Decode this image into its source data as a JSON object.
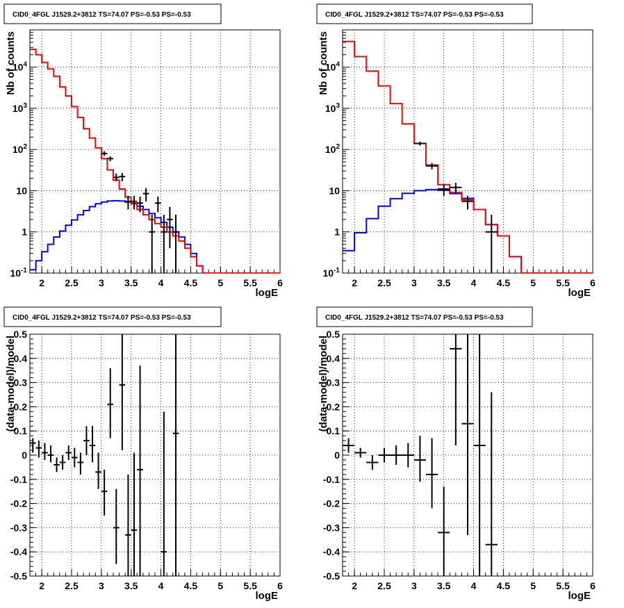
{
  "colors": {
    "data": "#000000",
    "total_model": "#ff0000",
    "source_model": "#0000ff"
  },
  "chart_data": [
    {
      "type": "line",
      "title": "CID0_4FGL J1529.2+3812 TS=74.07 PS=-0.53 PS=-0.53",
      "xlabel": "logE",
      "ylabel": "Nb of counts",
      "xlim": [
        1.8,
        6
      ],
      "ylim": [
        0.1,
        80000
      ],
      "y_scale": "log",
      "grid": true,
      "x_ticks": [
        "2",
        "2.5",
        "3",
        "3.5",
        "4",
        "4.5",
        "5",
        "5.5",
        "6"
      ],
      "y_ticks": [
        "10^-1",
        "1",
        "10",
        "10^2",
        "10^3",
        "10^4"
      ],
      "bin_edges": [
        1.8,
        1.9,
        2.0,
        2.1,
        2.2,
        2.3,
        2.4,
        2.5,
        2.6,
        2.7,
        2.8,
        2.9,
        3.0,
        3.1,
        3.2,
        3.3,
        3.4,
        3.5,
        3.6,
        3.7,
        3.8,
        3.9,
        4.0,
        4.1,
        4.2,
        4.3,
        4.4,
        4.5,
        4.6,
        4.7,
        4.8,
        4.9,
        5.0,
        5.1,
        5.2,
        5.3,
        5.4,
        5.5,
        5.6,
        5.7,
        5.8,
        5.9,
        6.0
      ],
      "series": [
        {
          "values": [
            27000,
            20000,
            13000,
            9000,
            6000,
            3300,
            2000,
            1100,
            600,
            320,
            190,
            110,
            60,
            32,
            18,
            11,
            7,
            5,
            3.5,
            2.6,
            2.0,
            1.6,
            1.3,
            1.0,
            0.8,
            0.6,
            0.4,
            0.25,
            0.15,
            0.1,
            0.1,
            0.1,
            0.1,
            0.1,
            0.1,
            0.1,
            0.1,
            0.1,
            0.1,
            0.1,
            0.1,
            0.1
          ]
        },
        {
          "values": [
            0.12,
            0.2,
            0.33,
            0.5,
            0.75,
            1.05,
            1.45,
            1.95,
            2.6,
            3.3,
            4.1,
            4.8,
            5.3,
            5.6,
            5.7,
            5.6,
            5.3,
            4.8,
            4.2,
            3.5,
            2.8,
            2.2,
            1.7,
            1.3,
            1.0,
            0.75,
            0.5,
            0.3,
            0.15,
            0.1,
            0.1,
            0.1,
            0.1,
            0.1,
            0.1,
            0.1,
            0.1,
            0.1,
            0.1,
            0.1,
            0.1,
            0.1
          ]
        },
        {
          "points": [
            {
              "x": 3.05,
              "y": 80,
              "yerr_low": 70,
              "yerr_high": 91
            },
            {
              "x": 3.15,
              "y": 60,
              "yerr_low": 52,
              "yerr_high": 68
            },
            {
              "x": 3.25,
              "y": 21,
              "yerr_low": 17,
              "yerr_high": 26
            },
            {
              "x": 3.35,
              "y": 22,
              "yerr_low": 17,
              "yerr_high": 27
            },
            {
              "x": 3.45,
              "y": 5.5,
              "yerr_low": 3.5,
              "yerr_high": 7.5
            },
            {
              "x": 3.55,
              "y": 5.5,
              "yerr_low": 3.5,
              "yerr_high": 7.5
            },
            {
              "x": 3.65,
              "y": 5,
              "yerr_low": 3,
              "yerr_high": 7.2
            },
            {
              "x": 3.75,
              "y": 8.5,
              "yerr_low": 5.5,
              "yerr_high": 11.5
            },
            {
              "x": 3.85,
              "y": 1,
              "yerr_low": 0.1,
              "yerr_high": 2.6
            },
            {
              "x": 3.95,
              "y": 5,
              "yerr_low": 3,
              "yerr_high": 7.2
            },
            {
              "x": 4.05,
              "y": 1,
              "yerr_low": 0.1,
              "yerr_high": 2.6
            },
            {
              "x": 4.15,
              "y": 2,
              "yerr_low": 0.4,
              "yerr_high": 4
            },
            {
              "x": 4.25,
              "y": 1,
              "yerr_low": 0.1,
              "yerr_high": 2.6
            }
          ]
        }
      ]
    },
    {
      "type": "line",
      "title": "CID0_4FGL J1529.2+3812 TS=74.07 PS=-0.53 PS=-0.53",
      "xlabel": "logE",
      "ylabel": "Nb of counts",
      "xlim": [
        1.8,
        6
      ],
      "ylim": [
        0.1,
        80000
      ],
      "y_scale": "log",
      "grid": true,
      "x_ticks": [
        "2",
        "2.5",
        "3",
        "3.5",
        "4",
        "4.5",
        "5",
        "5.5",
        "6"
      ],
      "y_ticks": [
        "10^-1",
        "1",
        "10",
        "10^2",
        "10^3",
        "10^4"
      ],
      "bin_edges": [
        1.8,
        2.0,
        2.2,
        2.4,
        2.6,
        2.8,
        3.0,
        3.2,
        3.4,
        3.6,
        3.8,
        4.0,
        4.2,
        4.4,
        4.6,
        4.8,
        5.0,
        5.2,
        5.4,
        5.6,
        5.8,
        6.0
      ],
      "series": [
        {
          "values": [
            42000,
            18000,
            8000,
            3500,
            1300,
            420,
            140,
            42,
            14,
            9,
            6,
            3.5,
            1.5,
            0.8,
            0.25,
            0.1,
            0.1,
            0.1,
            0.1,
            0.1,
            0.1
          ]
        },
        {
          "values": [
            0.35,
            0.95,
            2.1,
            4.2,
            6.4,
            8.6,
            10,
            10.6,
            10.2,
            8.5,
            6.5,
            3.5,
            1.5,
            0.8,
            0.25,
            0.1,
            0.1,
            0.1,
            0.1,
            0.1,
            0.1
          ]
        },
        {
          "points": [
            {
              "x": 3.1,
              "y": 140,
              "yerr_low": 125,
              "yerr_high": 155
            },
            {
              "x": 3.3,
              "y": 40,
              "yerr_low": 33,
              "yerr_high": 47
            },
            {
              "x": 3.5,
              "y": 11,
              "yerr_low": 7.5,
              "yerr_high": 14.5
            },
            {
              "x": 3.7,
              "y": 12,
              "yerr_low": 8.5,
              "yerr_high": 15.5
            },
            {
              "x": 3.9,
              "y": 5.5,
              "yerr_low": 3.5,
              "yerr_high": 7.5
            },
            {
              "x": 4.3,
              "y": 1,
              "yerr_low": 0.1,
              "yerr_high": 2.6
            }
          ]
        }
      ]
    },
    {
      "type": "scatter",
      "title": "CID0_4FGL J1529.2+3812 TS=74.07 PS=-0.53 PS=-0.53",
      "xlabel": "logE",
      "ylabel": "(data-model)/model",
      "xlim": [
        1.8,
        6
      ],
      "ylim": [
        -0.5,
        0.5
      ],
      "grid": true,
      "x_ticks": [
        "2",
        "2.5",
        "3",
        "3.5",
        "4",
        "4.5",
        "5",
        "5.5",
        "6"
      ],
      "y_ticks": [
        "-0.5",
        "-0.4",
        "-0.3",
        "-0.2",
        "-0.1",
        "0",
        "0.1",
        "0.2",
        "0.3",
        "0.4",
        "0.5"
      ],
      "series": [
        {
          "points": [
            {
              "x": 1.85,
              "y": 0.05,
              "lo": 0.01,
              "hi": 0.07
            },
            {
              "x": 1.95,
              "y": 0.03,
              "lo": -0.01,
              "hi": 0.06
            },
            {
              "x": 2.05,
              "y": 0.01,
              "lo": -0.02,
              "hi": 0.05
            },
            {
              "x": 2.15,
              "y": 0.0,
              "lo": -0.03,
              "hi": 0.04
            },
            {
              "x": 2.25,
              "y": -0.04,
              "lo": -0.07,
              "hi": -0.01
            },
            {
              "x": 2.35,
              "y": -0.03,
              "lo": -0.06,
              "hi": 0.0
            },
            {
              "x": 2.45,
              "y": 0.01,
              "lo": -0.02,
              "hi": 0.04
            },
            {
              "x": 2.55,
              "y": -0.01,
              "lo": -0.05,
              "hi": 0.03
            },
            {
              "x": 2.65,
              "y": -0.03,
              "lo": -0.08,
              "hi": 0.01
            },
            {
              "x": 2.75,
              "y": 0.06,
              "lo": 0.0,
              "hi": 0.12
            },
            {
              "x": 2.85,
              "y": 0.04,
              "lo": -0.03,
              "hi": 0.12
            },
            {
              "x": 2.95,
              "y": -0.07,
              "lo": -0.14,
              "hi": 0.01
            },
            {
              "x": 3.05,
              "y": -0.15,
              "lo": -0.25,
              "hi": -0.06
            },
            {
              "x": 3.15,
              "y": 0.21,
              "lo": 0.07,
              "hi": 0.36
            },
            {
              "x": 3.25,
              "y": -0.3,
              "lo": -0.45,
              "hi": -0.14
            },
            {
              "x": 3.35,
              "y": 0.29,
              "lo": 0.02,
              "hi": 0.5
            },
            {
              "x": 3.45,
              "y": -0.33,
              "lo": -0.5,
              "hi": -0.08
            },
            {
              "x": 3.55,
              "y": -0.31,
              "lo": -0.5,
              "hi": 0.01
            },
            {
              "x": 3.65,
              "y": -0.06,
              "lo": -0.5,
              "hi": 0.37
            },
            {
              "x": 4.05,
              "y": -0.4,
              "lo": -0.5,
              "hi": 0.18
            },
            {
              "x": 4.25,
              "y": 0.09,
              "lo": -0.5,
              "hi": 0.5
            }
          ]
        }
      ]
    },
    {
      "type": "scatter",
      "title": "CID0_4FGL J1529.2+3812 TS=74.07 PS=-0.53 PS=-0.53",
      "xlabel": "logE",
      "ylabel": "(data-model)/model",
      "xlim": [
        1.8,
        6
      ],
      "ylim": [
        -0.5,
        0.5
      ],
      "grid": true,
      "x_ticks": [
        "2",
        "2.5",
        "3",
        "3.5",
        "4",
        "4.5",
        "5",
        "5.5",
        "6"
      ],
      "y_ticks": [
        "-0.5",
        "-0.4",
        "-0.3",
        "-0.2",
        "-0.1",
        "0",
        "0.1",
        "0.2",
        "0.3",
        "0.4",
        "0.5"
      ],
      "series": [
        {
          "points": [
            {
              "x": 1.9,
              "y": 0.04,
              "lo": 0.01,
              "hi": 0.07
            },
            {
              "x": 2.1,
              "y": 0.01,
              "lo": -0.01,
              "hi": 0.03
            },
            {
              "x": 2.3,
              "y": -0.03,
              "lo": -0.06,
              "hi": 0.0
            },
            {
              "x": 2.5,
              "y": 0.0,
              "lo": -0.03,
              "hi": 0.03
            },
            {
              "x": 2.7,
              "y": 0.0,
              "lo": -0.04,
              "hi": 0.04
            },
            {
              "x": 2.9,
              "y": 0.0,
              "lo": -0.05,
              "hi": 0.05
            },
            {
              "x": 3.1,
              "y": -0.02,
              "lo": -0.11,
              "hi": 0.08
            },
            {
              "x": 3.3,
              "y": -0.08,
              "lo": -0.22,
              "hi": 0.07
            },
            {
              "x": 3.5,
              "y": -0.32,
              "lo": -0.5,
              "hi": -0.13
            },
            {
              "x": 3.7,
              "y": 0.44,
              "lo": 0.04,
              "hi": 0.5
            },
            {
              "x": 3.9,
              "y": 0.13,
              "lo": -0.33,
              "hi": 0.5
            },
            {
              "x": 4.1,
              "y": 0.04,
              "lo": -0.5,
              "hi": 0.5
            },
            {
              "x": 4.3,
              "y": -0.37,
              "lo": -0.5,
              "hi": 0.26
            }
          ]
        }
      ]
    }
  ]
}
